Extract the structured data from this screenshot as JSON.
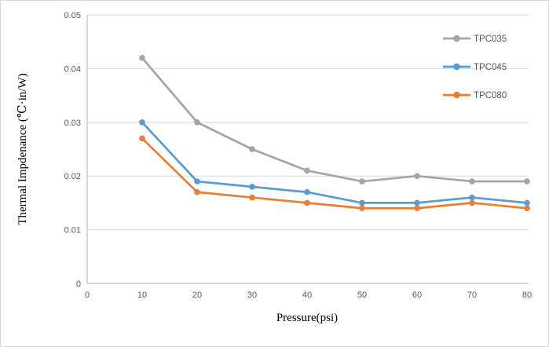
{
  "colors": {
    "background": "#FFFFFF",
    "chart_border": "#D9D9D9",
    "gridline": "#D9D9D9",
    "axis_line": "#BFBFBF",
    "tick_label": "#595959",
    "legend_label": "#595959",
    "axis_title": "#000000",
    "series_gray": "#A5A5A5",
    "series_blue": "#5B9BD5",
    "series_orange": "#ED7D31"
  },
  "chart_data": {
    "type": "line",
    "title": "",
    "xlabel": "Pressure(psi)",
    "ylabel": "Thermal Impdenance (℃·in/W)",
    "xlim": [
      0,
      80
    ],
    "ylim": [
      0,
      0.05
    ],
    "x_ticks": [
      "0",
      "10",
      "20",
      "30",
      "40",
      "50",
      "60",
      "70",
      "80"
    ],
    "y_ticks": [
      "0",
      "0.01",
      "0.02",
      "0.03",
      "0.04",
      "0.05"
    ],
    "grid": "horizontal-only",
    "legend_position": "top-right",
    "x": [
      10,
      20,
      30,
      40,
      50,
      60,
      70,
      80
    ],
    "series": [
      {
        "name": "TPC035",
        "color": "#A5A5A5",
        "values": [
          0.042,
          0.03,
          0.025,
          0.021,
          0.019,
          0.02,
          0.019,
          0.019
        ]
      },
      {
        "name": "TPC045",
        "color": "#5B9BD5",
        "values": [
          0.03,
          0.019,
          0.018,
          0.017,
          0.015,
          0.015,
          0.016,
          0.015
        ]
      },
      {
        "name": "TPC080",
        "color": "#ED7D31",
        "values": [
          0.027,
          0.017,
          0.016,
          0.015,
          0.014,
          0.014,
          0.015,
          0.014
        ]
      }
    ]
  }
}
